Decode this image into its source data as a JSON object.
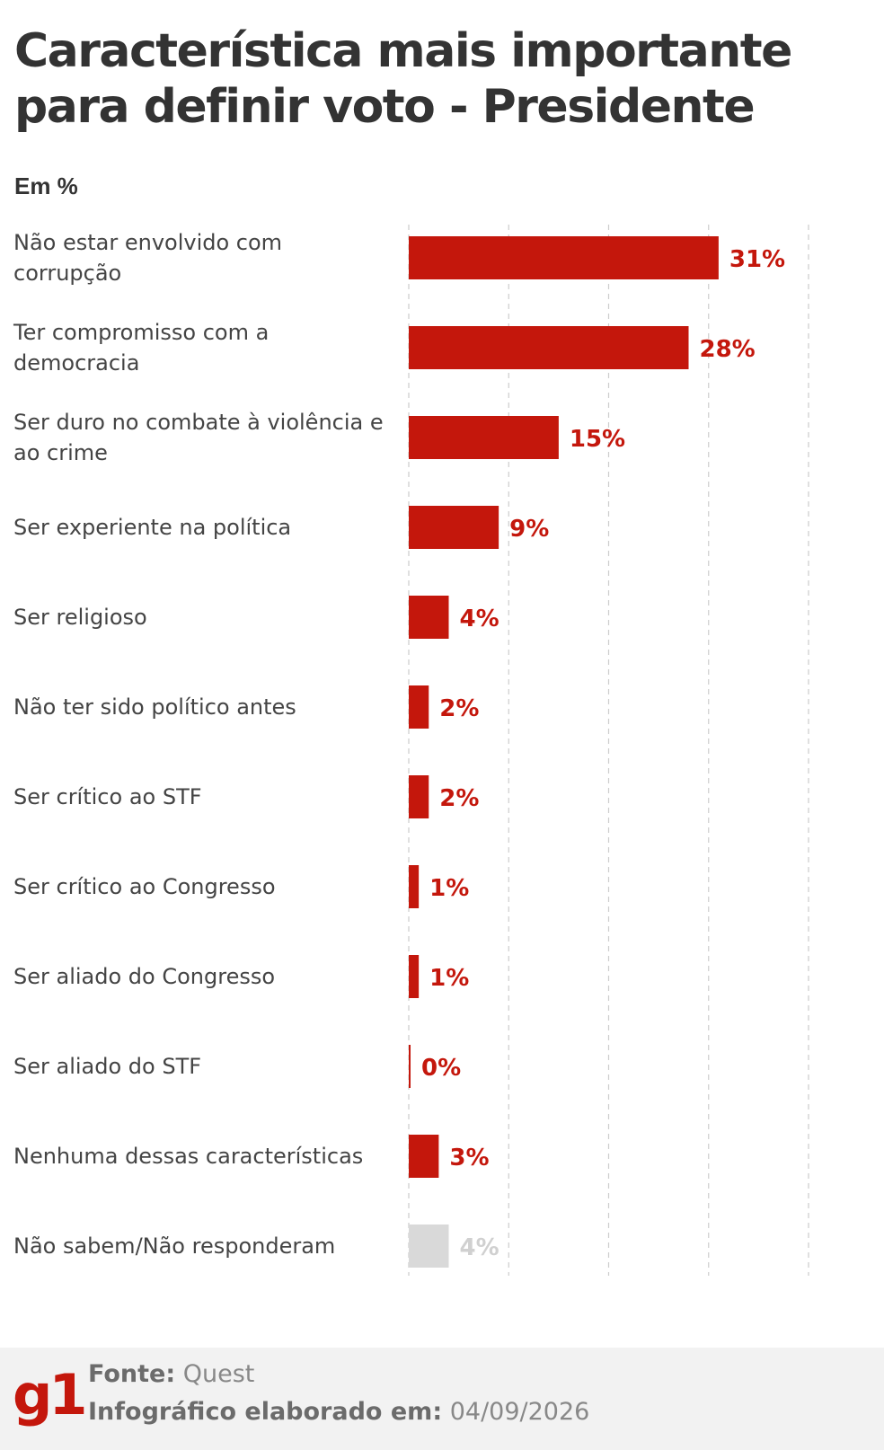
{
  "title": "Característica mais importante para definir voto - Presidente",
  "unit": "Em %",
  "colors": {
    "bar": "#c4170c",
    "bar_muted": "#d9d9d9",
    "label_muted": "#d0d0d0",
    "grid": "#cccccc",
    "brand": "#c4170c"
  },
  "chart_data": {
    "type": "bar",
    "orientation": "horizontal",
    "title": "Característica mais importante para definir voto - Presidente",
    "xlabel": "",
    "ylabel": "Em %",
    "xlim": [
      0,
      40
    ],
    "grid": "vertical dashed",
    "categories": [
      "Não estar envolvido com corrupção",
      "Ter compromisso com a democracia",
      "Ser duro no combate à violência e ao crime",
      "Ser experiente na política",
      "Ser religioso",
      "Não ter sido político antes",
      "Ser crítico ao STF",
      "Ser crítico ao Congresso",
      "Ser aliado do Congresso",
      "Ser aliado do STF",
      "Nenhuma dessas características",
      "Não sabem/Não responderam"
    ],
    "values": [
      31,
      28,
      15,
      9,
      4,
      2,
      2,
      1,
      1,
      0,
      3,
      4
    ],
    "value_labels": [
      "31%",
      "28%",
      "15%",
      "9%",
      "4%",
      "2%",
      "2%",
      "1%",
      "1%",
      "0%",
      "3%",
      "4%"
    ],
    "muted": [
      false,
      false,
      false,
      false,
      false,
      false,
      false,
      false,
      false,
      false,
      false,
      true
    ]
  },
  "footer": {
    "logo": "g1",
    "source_label": "Fonte:",
    "source_value": "Quest",
    "credit_label": "Infográfico elaborado em:",
    "credit_value": "04/09/2026"
  }
}
